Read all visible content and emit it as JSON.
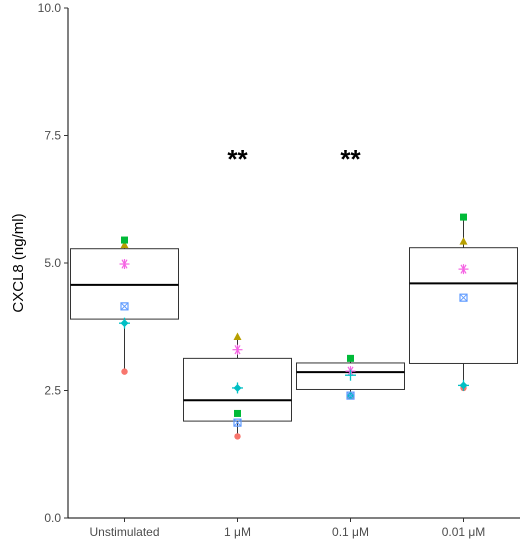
{
  "chart_data": {
    "type": "box",
    "title": "",
    "xlabel": "",
    "ylabel": "CXCL8 (ng/ml)",
    "ylim": [
      0,
      10
    ],
    "y_ticks": [
      "0.0",
      "2.5",
      "5.0",
      "7.5",
      "10.0"
    ],
    "grid": false,
    "categories": [
      "Unstimulated",
      "1 μM",
      "0.1 μM",
      "0.01 μM"
    ],
    "boxes": [
      {
        "category": "Unstimulated",
        "min": 2.87,
        "q1": 3.9,
        "median": 4.57,
        "q3": 5.28,
        "max": 5.45,
        "significance": ""
      },
      {
        "category": "1 μM",
        "min": 1.6,
        "q1": 1.9,
        "median": 2.31,
        "q3": 3.13,
        "max": 3.55,
        "significance": "**"
      },
      {
        "category": "0.1 μM",
        "min": 2.38,
        "q1": 2.52,
        "median": 2.86,
        "q3": 3.04,
        "max": 3.13,
        "significance": "**"
      },
      {
        "category": "0.01 μM",
        "min": 2.55,
        "q1": 3.03,
        "median": 4.6,
        "q3": 5.3,
        "max": 5.9,
        "significance": ""
      }
    ],
    "point_series": [
      {
        "marker": "circle",
        "color": "#f8766d",
        "values": [
          2.87,
          1.6,
          2.4,
          2.55
        ]
      },
      {
        "marker": "triangle",
        "color": "#b79f00",
        "values": [
          5.35,
          3.55,
          2.4,
          5.42
        ]
      },
      {
        "marker": "square",
        "color": "#00ba38",
        "values": [
          5.45,
          2.05,
          3.13,
          5.9
        ]
      },
      {
        "marker": "diamond",
        "color": "#00bfc4",
        "values": [
          3.82,
          2.55,
          2.4,
          2.6
        ]
      },
      {
        "marker": "square-cross",
        "color": "#619cff",
        "values": [
          4.15,
          1.87,
          2.4,
          4.32
        ]
      },
      {
        "marker": "asterisk",
        "color": "#f564e3",
        "values": [
          4.98,
          3.3,
          2.88,
          4.88
        ]
      },
      {
        "marker": "plus",
        "color": "#00bfc4",
        "values": [
          3.82,
          2.55,
          2.8,
          2.6
        ]
      }
    ]
  }
}
